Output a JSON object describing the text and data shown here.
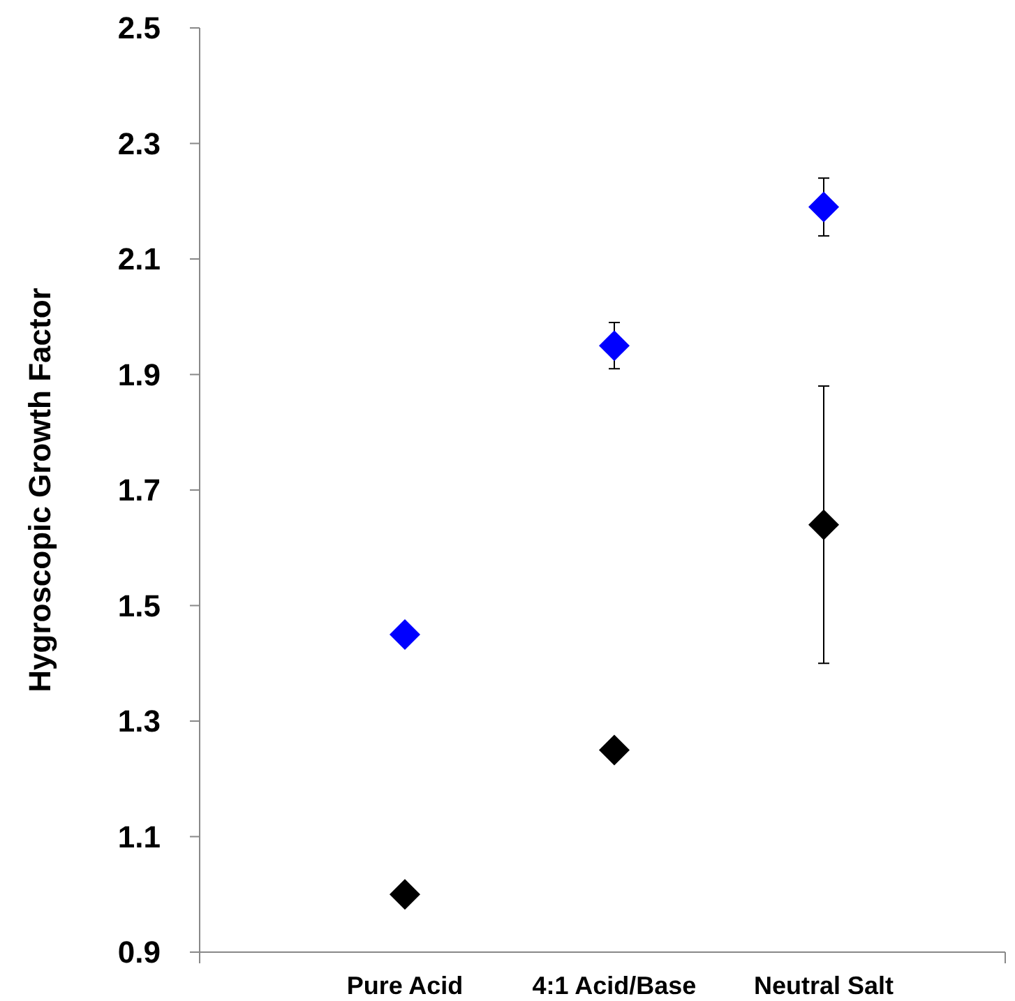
{
  "chart_data": {
    "type": "scatter",
    "ylabel": "Hygroscopic Growth Factor",
    "categories": [
      "Pure Acid",
      "4:1 Acid/Base",
      "Neutral Salt"
    ],
    "series": [
      {
        "color": "#0000ff",
        "values": [
          1.45,
          1.95,
          2.19
        ],
        "errors": [
          null,
          0.04,
          0.05
        ]
      },
      {
        "color": "#000000",
        "values": [
          1.0,
          1.25,
          1.64
        ],
        "errors": [
          null,
          null,
          0.24
        ]
      }
    ],
    "ylim": [
      0.9,
      2.5
    ],
    "yticks": [
      {
        "value": 0.9,
        "label": "0.9"
      },
      {
        "value": 1.1,
        "label": "1.1"
      },
      {
        "value": 1.3,
        "label": "1.3"
      },
      {
        "value": 1.5,
        "label": "1.5"
      },
      {
        "value": 1.7,
        "label": "1.7"
      },
      {
        "value": 1.9,
        "label": "1.9"
      },
      {
        "value": 2.1,
        "label": "2.1"
      },
      {
        "value": 2.3,
        "label": "2.3"
      },
      {
        "value": 2.5,
        "label": "2.5"
      }
    ],
    "grid": false,
    "marker": "diamond"
  }
}
